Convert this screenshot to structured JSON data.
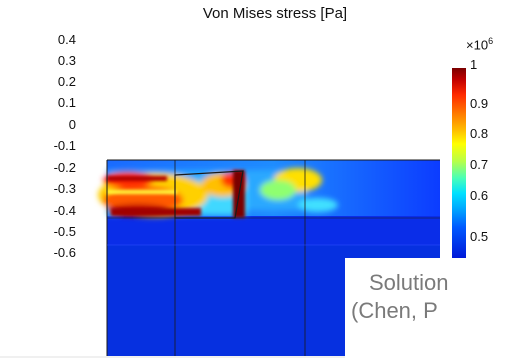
{
  "plot": {
    "title": "Von Mises stress [Pa]",
    "y_ticks": [
      "0.4",
      "0.3",
      "0.2",
      "0.1",
      "0",
      "-0.1",
      "-0.2",
      "-0.3",
      "-0.4",
      "-0.5",
      "-0.6"
    ]
  },
  "colorbar": {
    "multiplier_base": "×10",
    "multiplier_exp": "6",
    "labels": [
      "1",
      "0.9",
      "0.8",
      "0.7",
      "0.6",
      "0.5"
    ]
  },
  "overlay": {
    "line1": "Solution",
    "line2": "(Chen, P"
  }
}
